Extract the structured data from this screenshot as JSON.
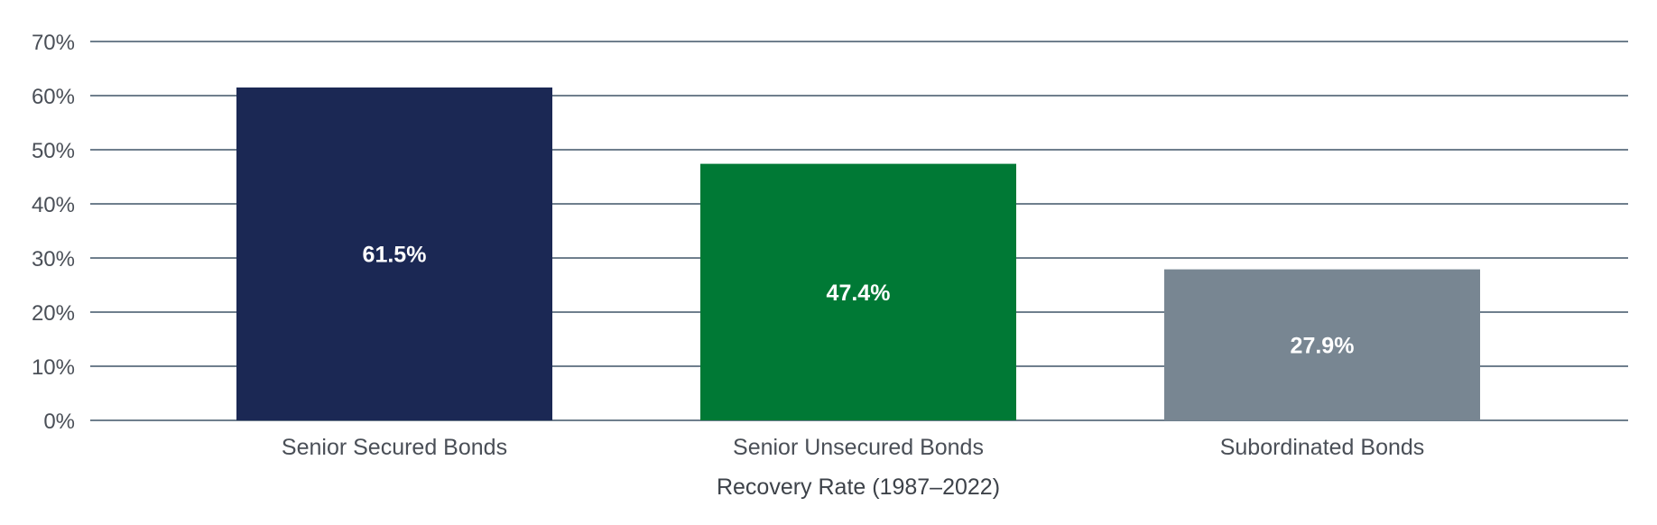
{
  "chart_data": {
    "type": "bar",
    "title": "",
    "xlabel": "Recovery Rate (1987–2022)",
    "ylabel": "",
    "categories": [
      "Senior Secured Bonds",
      "Senior Unsecured Bonds",
      "Subordinated Bonds"
    ],
    "values": [
      61.5,
      47.4,
      27.9
    ],
    "data_labels": [
      "61.5%",
      "47.4%",
      "27.9%"
    ],
    "colors": [
      "#1b2854",
      "#007935",
      "#788692"
    ],
    "ylim": [
      0,
      70
    ],
    "yticks": [
      0,
      10,
      20,
      30,
      40,
      50,
      60,
      70
    ],
    "ytick_labels": [
      "0%",
      "10%",
      "20%",
      "30%",
      "40%",
      "50%",
      "60%",
      "70%"
    ],
    "grid": true,
    "grid_color": "#6f7f8d"
  }
}
